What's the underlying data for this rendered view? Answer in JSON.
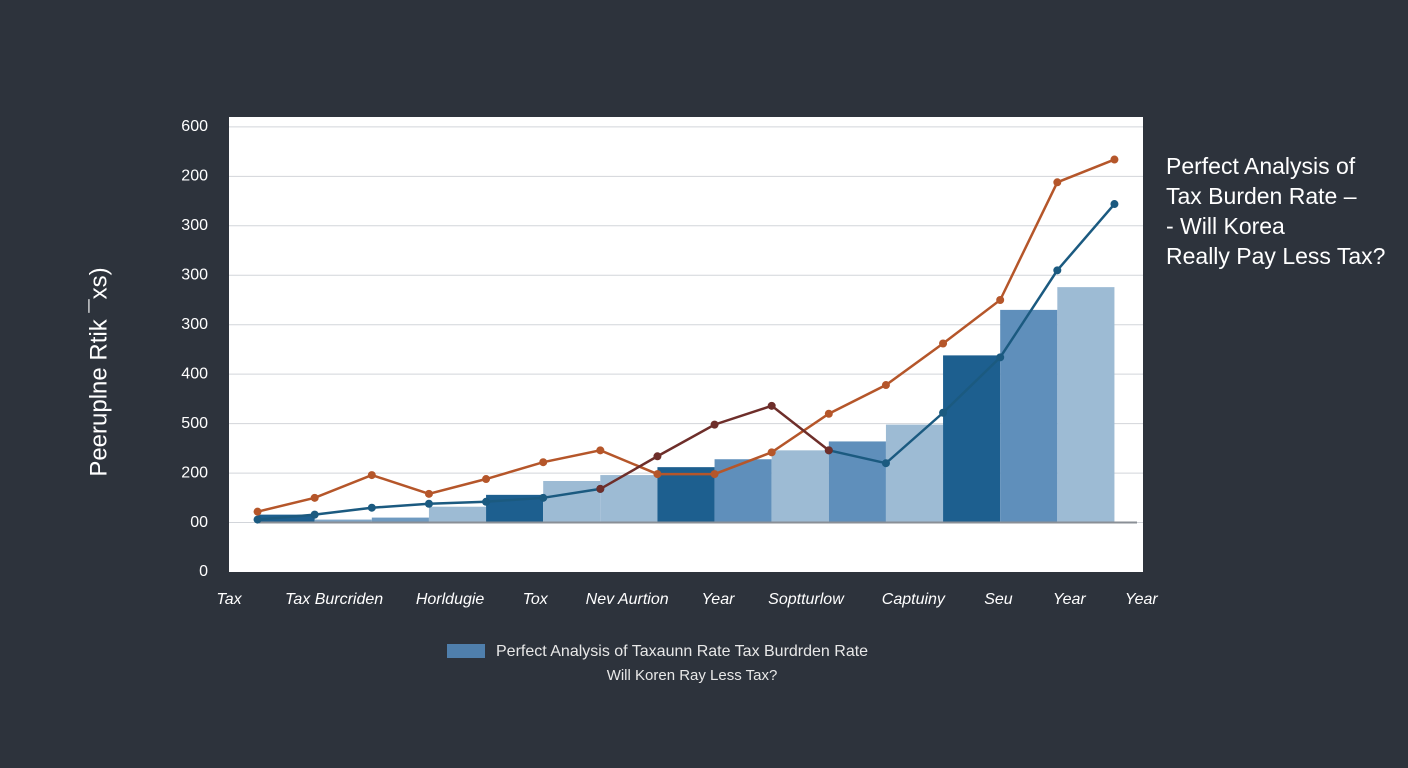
{
  "chart_data": {
    "type": "bar_line",
    "title": [
      "Perfect Analysis of",
      "Tax Burden Rate –",
      "- Will Korea",
      "Really Pay Less Tax?"
    ],
    "y_label": "Peeruplne Rtik ¯xs)",
    "xlim": [
      0,
      16
    ],
    "ylim": [
      0,
      460
    ],
    "yticks": [
      0,
      {
        "value": 50,
        "label": "00"
      },
      {
        "value": 100,
        "label": "200"
      },
      {
        "value": 150,
        "label": "500"
      },
      {
        "value": 200,
        "label": "400"
      },
      {
        "value": 250,
        "label": "300"
      },
      {
        "value": 300,
        "label": "300"
      },
      {
        "value": 350,
        "label": "300"
      },
      {
        "value": 400,
        "label": "200"
      },
      {
        "value": 450,
        "label": "600"
      }
    ],
    "xticks": [
      {
        "value": 0,
        "label": "Tax"
      },
      {
        "value": 1.84,
        "label": "Tax Burcriden"
      },
      {
        "value": 3.87,
        "label": "Horldugie"
      },
      {
        "value": 5.36,
        "label": "Tox"
      },
      {
        "value": 6.97,
        "label": "Nev Aurtion"
      },
      {
        "value": 8.56,
        "label": "Year"
      },
      {
        "value": 10.1,
        "label": "Soptturlow"
      },
      {
        "value": 11.98,
        "label": "Captuiny"
      },
      {
        "value": 13.47,
        "label": "Seu"
      },
      {
        "value": 14.71,
        "label": "Year"
      },
      {
        "value": 15.97,
        "label": "Year"
      }
    ],
    "grid": true,
    "baseline": 50,
    "bars": {
      "name": "Perfect  Analysis of Taxaunn Rate Tax Burdrden Rate",
      "caption": "Will Koren Ray Less Tax?",
      "color": "#4f7fac",
      "bins": [
        0.5,
        1.5,
        2.5,
        3.5,
        4.5,
        5.5,
        6.5,
        7.5,
        8.5,
        9.5,
        10.5,
        11.5,
        12.5,
        13.5,
        14.5,
        15.5
      ],
      "values": [
        58,
        53,
        55,
        66,
        78,
        92,
        98,
        106,
        114,
        123,
        132,
        149,
        219,
        265,
        288
      ],
      "colors": [
        "#1d5f8f",
        "#7fa6c8",
        "#6f9ac0",
        "#9dbbd4",
        "#1d5f8f",
        "#9dbbd4",
        "#9dbbd4",
        "#1d5f8f",
        "#5f8fbb",
        "#9dbbd4",
        "#5f8fbb",
        "#9dbbd4",
        "#1d5f8f",
        "#5f8fbb",
        "#9dbbd4"
      ]
    },
    "x": [
      0.5,
      1.5,
      2.5,
      3.5,
      4.5,
      5.5,
      6.5,
      7.5,
      8.5,
      9.5,
      10.5,
      11.5,
      12.5,
      13.5,
      14.5,
      15.5
    ],
    "series": [
      {
        "color": "#b5562a",
        "values": [
          61,
          75,
          98,
          79,
          94,
          111,
          123,
          99,
          99,
          121,
          160,
          189,
          231,
          275,
          394,
          417
        ]
      },
      {
        "color": "#1b5a80",
        "values": [
          53,
          58,
          65,
          69,
          71,
          75,
          84,
          null,
          null,
          null,
          123,
          110,
          161,
          217,
          305,
          372
        ]
      },
      {
        "color": "#6e2e2a",
        "values": [
          null,
          null,
          null,
          null,
          null,
          null,
          84,
          117,
          149,
          168,
          123,
          null,
          null,
          null,
          null,
          null
        ]
      }
    ]
  }
}
